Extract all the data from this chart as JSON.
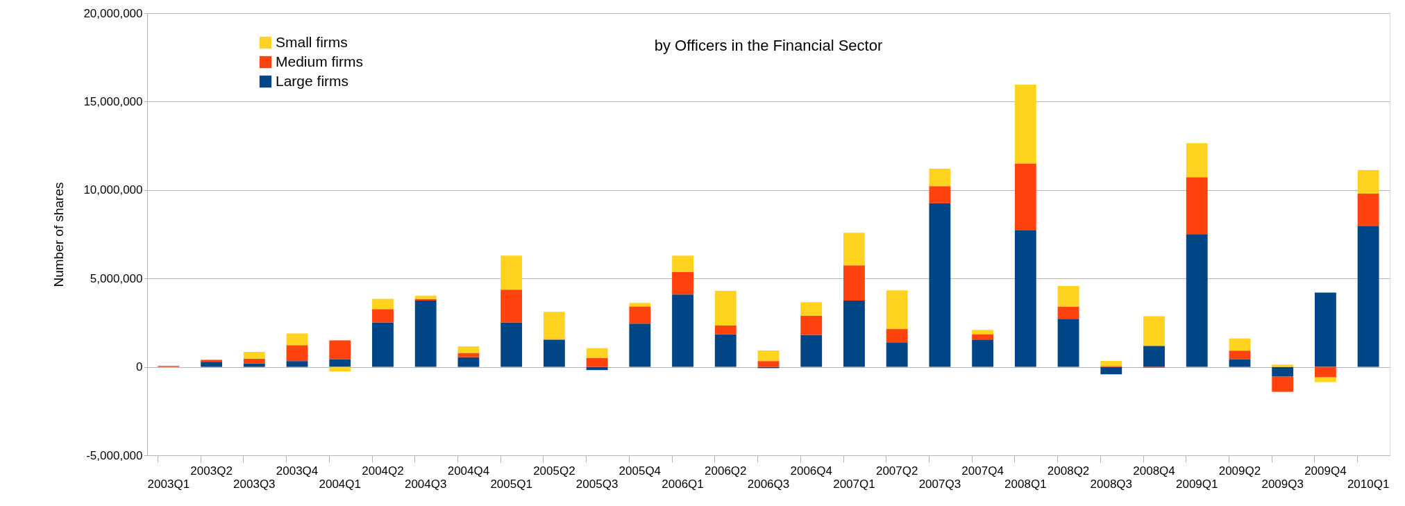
{
  "chart_data": {
    "type": "bar",
    "stacked": true,
    "title": "by Officers in the Financial Sector",
    "ylabel": "Number of shares",
    "categories": [
      "2003Q1",
      "2003Q2",
      "2003Q3",
      "2003Q4",
      "2004Q1",
      "2004Q2",
      "2004Q3",
      "2004Q4",
      "2005Q1",
      "2005Q2",
      "2005Q3",
      "2005Q4",
      "2006Q1",
      "2006Q2",
      "2006Q3",
      "2006Q4",
      "2007Q1",
      "2007Q2",
      "2007Q3",
      "2007Q4",
      "2008Q1",
      "2008Q2",
      "2008Q3",
      "2008Q4",
      "2009Q1",
      "2009Q2",
      "2009Q3",
      "2009Q4",
      "2010Q1"
    ],
    "series": [
      {
        "name": "Large firms",
        "color": "#004586",
        "values": [
          0,
          290000,
          200000,
          330000,
          440000,
          2520000,
          3750000,
          550000,
          2520000,
          1520000,
          -180000,
          2450000,
          4100000,
          1850000,
          -70000,
          1810000,
          3750000,
          1390000,
          9250000,
          1540000,
          7720000,
          2720000,
          -420000,
          1190000,
          7510000,
          440000,
          -550000,
          4200000,
          7950000
        ]
      },
      {
        "name": "Medium firms",
        "color": "#ff420e",
        "values": [
          60000,
          110000,
          270000,
          900000,
          1060000,
          750000,
          90000,
          240000,
          1850000,
          50000,
          510000,
          970000,
          1260000,
          490000,
          330000,
          1080000,
          1990000,
          750000,
          970000,
          310000,
          3780000,
          690000,
          50000,
          -50000,
          3220000,
          480000,
          -860000,
          -590000,
          1850000
        ]
      },
      {
        "name": "Small firms",
        "color": "#ffd320",
        "values": [
          null,
          null,
          380000,
          660000,
          -260000,
          580000,
          180000,
          370000,
          1920000,
          1540000,
          550000,
          200000,
          930000,
          1960000,
          600000,
          770000,
          1850000,
          2190000,
          990000,
          240000,
          4460000,
          1170000,
          290000,
          1680000,
          1920000,
          690000,
          130000,
          -270000,
          1330000
        ]
      }
    ],
    "ylim": [
      -5000000,
      20000000
    ],
    "yticks": [
      {
        "value": -5000000,
        "label": "-5,000,000"
      },
      0,
      {
        "value": 5000000,
        "label": "5,000,000"
      },
      {
        "value": 10000000,
        "label": "10,000,000"
      },
      {
        "value": 15000000,
        "label": "15,000,000"
      },
      {
        "value": 20000000,
        "label": "20,000,000"
      }
    ],
    "grid": "y",
    "legend": "top left"
  }
}
